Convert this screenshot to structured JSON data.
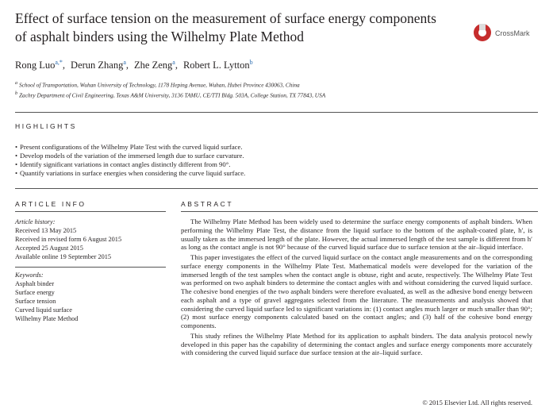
{
  "header": {
    "title": "Effect of surface tension on the measurement of surface energy components of asphalt binders using the Wilhelmy Plate Method",
    "crossmark": "CrossMark",
    "authors": [
      {
        "name": "Rong Luo",
        "sup": "a,*"
      },
      {
        "name": "Derun Zhang",
        "sup": "a"
      },
      {
        "name": "Zhe Zeng",
        "sup": "a"
      },
      {
        "name": "Robert L. Lytton",
        "sup": "b"
      }
    ],
    "affiliations": [
      {
        "sup": "a",
        "text": "School of Transportation, Wuhan University of Technology, 1178 Heping Avenue, Wuhan, Hubei Province 430063, China"
      },
      {
        "sup": "b",
        "text": "Zachry Department of Civil Engineering, Texas A&M University, 3136 TAMU, CE/TTI Bldg. 503A, College Station, TX 77843, USA"
      }
    ]
  },
  "highlights": {
    "heading": "HIGHLIGHTS",
    "items": [
      "Present configurations of the Wilhelmy Plate Test with the curved liquid surface.",
      "Develop models of the variation of the immersed length due to surface curvature.",
      "Identify significant variations in contact angles distinctly different from 90°.",
      "Quantify variations in surface energies when considering the curve liquid surface."
    ]
  },
  "article_info": {
    "heading": "ARTICLE INFO",
    "history_label": "Article history:",
    "history": [
      "Received 13 May 2015",
      "Received in revised form 6 August 2015",
      "Accepted 25 August 2015",
      "Available online 19 September 2015"
    ],
    "keywords_label": "Keywords:",
    "keywords": [
      "Asphalt binder",
      "Surface energy",
      "Surface tension",
      "Curved liquid surface",
      "Wilhelmy Plate Method"
    ]
  },
  "abstract": {
    "heading": "ABSTRACT",
    "paragraphs": [
      "The Wilhelmy Plate Method has been widely used to determine the surface energy components of asphalt binders. When performing the Wilhelmy Plate Test, the distance from the liquid surface to the bottom of the asphalt-coated plate, h′, is usually taken as the immersed length of the plate. However, the actual immersed length of the test sample is different from h′ as long as the contact angle is not 90° because of the curved liquid surface due to surface tension at the air–liquid interface.",
      "This paper investigates the effect of the curved liquid surface on the contact angle measurements and on the corresponding surface energy components in the Wilhelmy Plate Test. Mathematical models were developed for the variation of the immersed length of the test samples when the contact angle is obtuse, right and acute, respectively. The Wilhelmy Plate Test was performed on two asphalt binders to determine the contact angles with and without considering the curved liquid surface. The cohesive bond energies of the two asphalt binders were therefore evaluated, as well as the adhesive bond energy between each asphalt and a type of gravel aggregates selected from the literature. The measurements and analysis showed that considering the curved liquid surface led to significant variations in: (1) contact angles much larger or much smaller than 90°; (2) most surface energy components calculated based on the contact angles; and (3) half of the cohesive bond energy components.",
      "This study refines the Wilhelmy Plate Method for its application to asphalt binders. The data analysis protocol newly developed in this paper has the capability of determining the contact angles and surface energy components more accurately with considering the curved liquid surface due surface tension at the air–liquid surface."
    ],
    "copyright": "© 2015 Elsevier Ltd. All rights reserved."
  }
}
